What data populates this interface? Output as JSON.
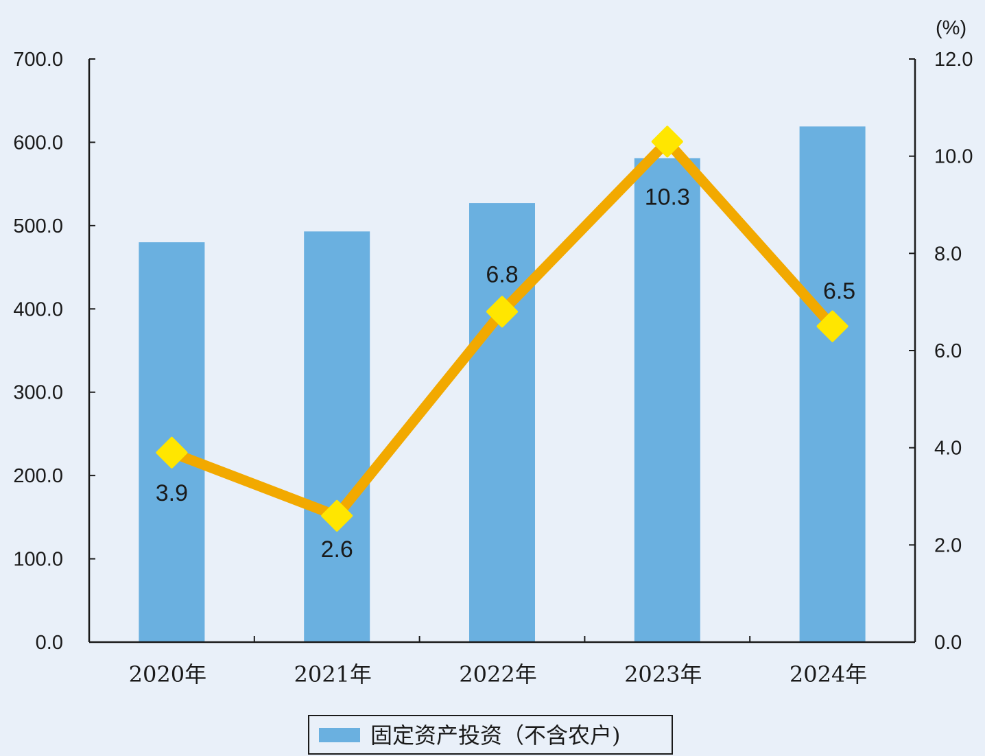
{
  "chart_data": {
    "type": "bar",
    "categories": [
      "2020年",
      "2021年",
      "2022年",
      "2023年",
      "2024年"
    ],
    "series": [
      {
        "name": "固定资产投资（不含农户)",
        "type": "bar",
        "axis": "left",
        "color": "#6ab0e0",
        "values": [
          480.0,
          493.0,
          527.0,
          581.0,
          619.0
        ]
      },
      {
        "type": "line",
        "axis": "right",
        "color": "#f2a900",
        "marker_color": "#ffe600",
        "values": [
          3.9,
          2.6,
          6.8,
          10.3,
          6.5
        ]
      }
    ],
    "y_left": {
      "ylim": [
        0,
        700
      ],
      "ticks": [
        "0.0",
        "100.0",
        "200.0",
        "300.0",
        "400.0",
        "500.0",
        "600.0",
        "700.0"
      ]
    },
    "y_right": {
      "unit": "(%)",
      "ylim": [
        0,
        12
      ],
      "ticks": [
        "0.0",
        "2.0",
        "4.0",
        "6.0",
        "8.0",
        "10.0",
        "12.0"
      ]
    },
    "data_labels": [
      "3.9",
      "2.6",
      "6.8",
      "10.3",
      "6.5"
    ],
    "legend": {
      "position": "bottom-center",
      "items": [
        "固定资产投资（不含农户)"
      ]
    },
    "grid": false
  }
}
